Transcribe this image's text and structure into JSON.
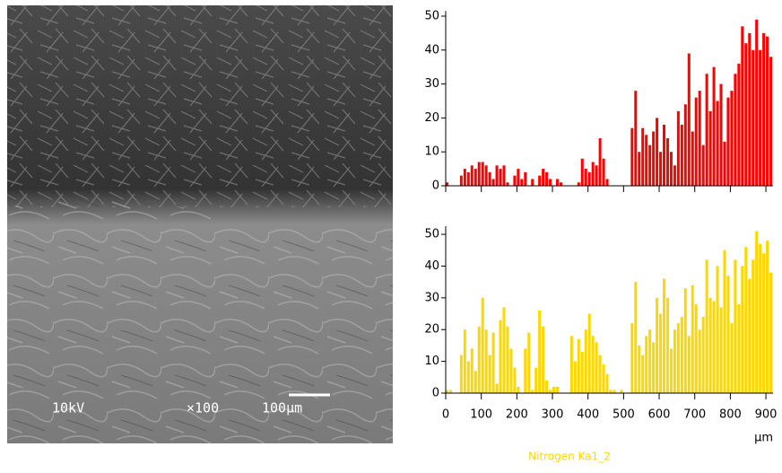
{
  "image": {
    "labels": [
      "10kV",
      "×100",
      "100µm"
    ]
  },
  "chart_data": [
    {
      "type": "bar",
      "color": "#ff0000",
      "xlim": [
        0,
        920
      ],
      "ylim": [
        0,
        51
      ],
      "yticks": [
        0,
        10,
        20,
        30,
        40,
        50
      ],
      "xticks": [
        0,
        100,
        200,
        300,
        400,
        500,
        600,
        700,
        800,
        900
      ],
      "xtick_labels": false,
      "x": [
        0,
        10,
        20,
        30,
        40,
        50,
        60,
        70,
        80,
        90,
        100,
        110,
        120,
        130,
        140,
        150,
        160,
        170,
        180,
        190,
        200,
        210,
        220,
        230,
        240,
        250,
        260,
        270,
        280,
        290,
        300,
        310,
        320,
        330,
        340,
        350,
        360,
        370,
        380,
        390,
        400,
        410,
        420,
        430,
        440,
        450,
        460,
        470,
        480,
        490,
        500,
        510,
        520,
        530,
        540,
        550,
        560,
        570,
        580,
        590,
        600,
        610,
        620,
        630,
        640,
        650,
        660,
        670,
        680,
        690,
        700,
        710,
        720,
        730,
        740,
        750,
        760,
        770,
        780,
        790,
        800,
        810,
        820,
        830,
        840,
        850,
        860,
        870,
        880,
        890,
        900,
        910
      ],
      "values": [
        1,
        0,
        0,
        0,
        3,
        5,
        4,
        6,
        5,
        7,
        7,
        6,
        4,
        2,
        6,
        5,
        6,
        1,
        0,
        3,
        5,
        2,
        4,
        0,
        2,
        0,
        3,
        5,
        4,
        2,
        0,
        2,
        1,
        0,
        0,
        0,
        0,
        1,
        8,
        5,
        4,
        7,
        6,
        14,
        8,
        2,
        0,
        0,
        0,
        0,
        0,
        0,
        17,
        28,
        10,
        17,
        15,
        12,
        16,
        20,
        10,
        18,
        14,
        10,
        6,
        22,
        18,
        24,
        39,
        16,
        26,
        28,
        12,
        33,
        22,
        35,
        25,
        30,
        13,
        26,
        28,
        33,
        36,
        47,
        42,
        45,
        40,
        49,
        40,
        45,
        44,
        38
      ]
    },
    {
      "type": "bar",
      "color": "#ffd700",
      "xlim": [
        0,
        920
      ],
      "ylim": [
        0,
        52
      ],
      "yticks": [
        0,
        10,
        20,
        30,
        40,
        50
      ],
      "xticks": [
        0,
        100,
        200,
        300,
        400,
        500,
        600,
        700,
        800,
        900
      ],
      "xtick_labels": true,
      "xlabel": "µm",
      "title": "Nitrogen Ka1_2",
      "x": [
        0,
        10,
        20,
        30,
        40,
        50,
        60,
        70,
        80,
        90,
        100,
        110,
        120,
        130,
        140,
        150,
        160,
        170,
        180,
        190,
        200,
        210,
        220,
        230,
        240,
        250,
        260,
        270,
        280,
        290,
        300,
        310,
        320,
        330,
        340,
        350,
        360,
        370,
        380,
        390,
        400,
        410,
        420,
        430,
        440,
        450,
        460,
        470,
        480,
        490,
        500,
        510,
        520,
        530,
        540,
        550,
        560,
        570,
        580,
        590,
        600,
        610,
        620,
        630,
        640,
        650,
        660,
        670,
        680,
        690,
        700,
        710,
        720,
        730,
        740,
        750,
        760,
        770,
        780,
        790,
        800,
        810,
        820,
        830,
        840,
        850,
        860,
        870,
        880,
        890,
        900,
        910
      ],
      "values": [
        1,
        1,
        0,
        0,
        12,
        20,
        10,
        14,
        7,
        21,
        30,
        20,
        12,
        19,
        3,
        23,
        27,
        21,
        14,
        8,
        2,
        0,
        14,
        19,
        1,
        8,
        26,
        21,
        4,
        1,
        2,
        2,
        0,
        0,
        0,
        18,
        10,
        17,
        13,
        20,
        25,
        18,
        16,
        12,
        9,
        6,
        1,
        1,
        0,
        1,
        0,
        0,
        22,
        35,
        15,
        12,
        18,
        20,
        16,
        30,
        25,
        36,
        30,
        14,
        20,
        22,
        24,
        33,
        18,
        34,
        28,
        20,
        24,
        42,
        30,
        29,
        40,
        27,
        45,
        37,
        22,
        42,
        28,
        40,
        46,
        36,
        42,
        51,
        47,
        44,
        48,
        38
      ]
    }
  ]
}
